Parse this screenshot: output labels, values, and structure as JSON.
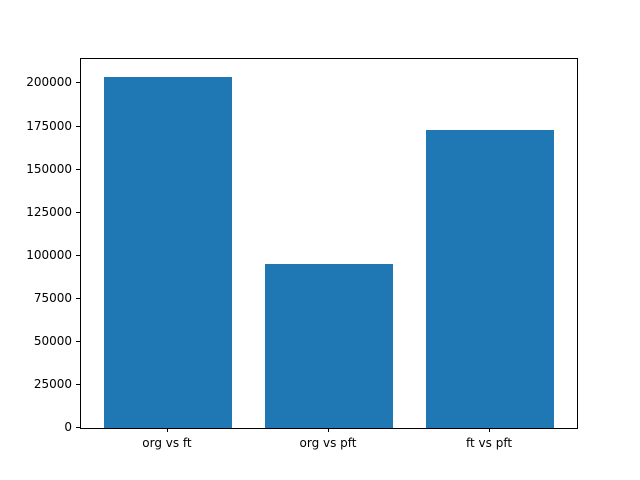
{
  "chart_data": {
    "type": "bar",
    "title": "",
    "xlabel": "",
    "ylabel": "",
    "categories": [
      "org vs ft",
      "org vs pft",
      "ft vs pft"
    ],
    "values": [
      204000,
      95000,
      173000
    ],
    "ylim": [
      0,
      214200
    ],
    "yticks": [
      0,
      25000,
      50000,
      75000,
      100000,
      125000,
      150000,
      175000,
      200000
    ],
    "bar_color": "#1f77b4",
    "bar_relative_width": 0.8,
    "grid": false,
    "legend": "none",
    "background_color": "#ffffff",
    "spine_color": "#000000"
  }
}
